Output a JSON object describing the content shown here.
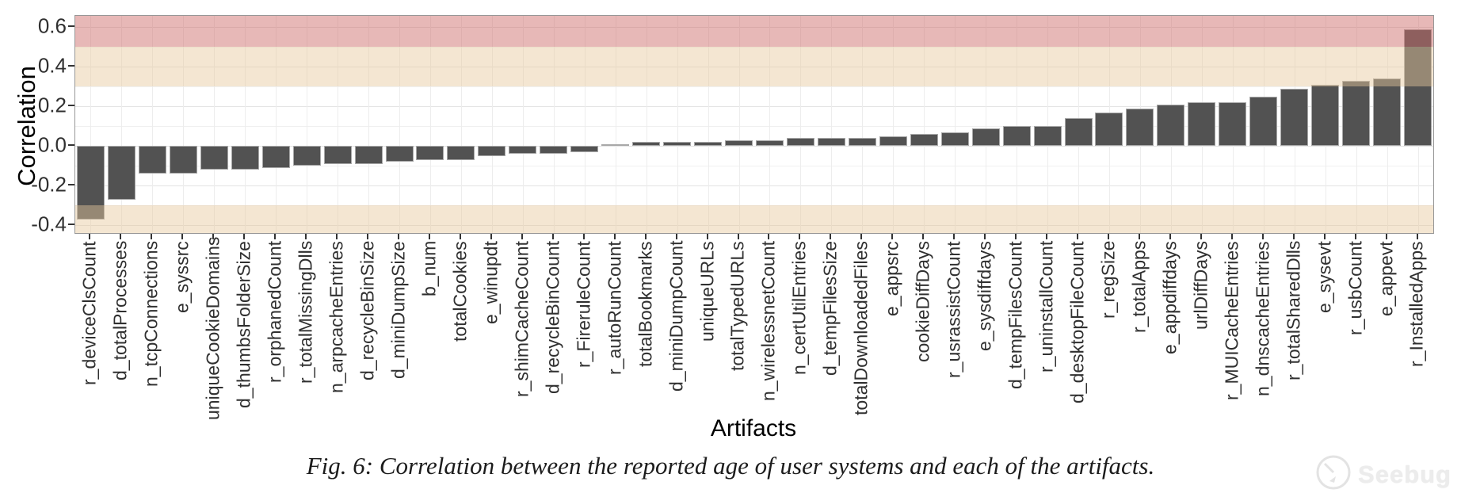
{
  "chart_data": {
    "type": "bar",
    "title": "",
    "xlabel": "Artifacts",
    "ylabel": "Correlation",
    "ylim": [
      -0.44,
      0.656
    ],
    "grid": true,
    "legend": "none",
    "bar_color": "#525252",
    "bar_border_color": "#a8a8a8",
    "ytick_labels": [
      "0.6",
      "0.4",
      "0.2",
      "0.0",
      "-0.2",
      "-0.4"
    ],
    "yticks": [
      0.6,
      0.4,
      0.2,
      0.0,
      -0.2,
      -0.4
    ],
    "yticks_minor": [
      0.5,
      0.3,
      0.1,
      -0.1,
      -0.3
    ],
    "bands": [
      {
        "name": "strong-positive-band",
        "from": 0.5,
        "to": 0.656,
        "color": "rgba(206,110,108,0.49)"
      },
      {
        "name": "moderate-positive-band",
        "from": 0.3,
        "to": 0.5,
        "color": "rgba(231,200,158,0.46)"
      },
      {
        "name": "moderate-negative-band",
        "from": -0.44,
        "to": -0.3,
        "color": "rgba(231,200,158,0.46)"
      }
    ],
    "categories": [
      "r_deviceClsCount",
      "d_totalProcesses",
      "n_tcpConnections",
      "e_syssrc",
      "uniqueCookieDomains",
      "d_thumbsFolderSize",
      "r_orphanedCount",
      "r_totalMissingDlls",
      "n_arpcacheEntries",
      "d_recycleBinSize",
      "d_miniDumpSize",
      "b_num",
      "totalCookies",
      "e_winupdt",
      "r_shimCacheCount",
      "d_recycleBinCount",
      "r_FireruleCount",
      "r_autoRunCount",
      "totalBookmarks",
      "d_miniDumpCount",
      "uniqueURLs",
      "totalTypedURLs",
      "n_wirelessnetCount",
      "n_certUtilEntries",
      "d_tempFilesSize",
      "totalDownloadedFiles",
      "e_appsrc",
      "cookieDiffDays",
      "r_usrassistCount",
      "e_sysdiffdays",
      "d_tempFilesCount",
      "r_uninstallCount",
      "d_desktopFileCount",
      "r_regSize",
      "r_totalApps",
      "e_appdiffdays",
      "urlDiffDays",
      "r_MUICacheEntries",
      "n_dnscacheEntries",
      "r_totalSharedDlls",
      "e_sysevt",
      "r_usbCount",
      "e_appevt",
      "r_InstalledApps"
    ],
    "values": [
      -0.37,
      -0.27,
      -0.14,
      -0.14,
      -0.12,
      -0.12,
      -0.11,
      -0.1,
      -0.09,
      -0.09,
      -0.08,
      -0.07,
      -0.07,
      -0.05,
      -0.04,
      -0.04,
      -0.03,
      0.01,
      0.02,
      0.02,
      0.02,
      0.03,
      0.03,
      0.04,
      0.04,
      0.04,
      0.05,
      0.06,
      0.07,
      0.09,
      0.1,
      0.1,
      0.14,
      0.17,
      0.19,
      0.21,
      0.22,
      0.22,
      0.25,
      0.29,
      0.31,
      0.33,
      0.34,
      0.59
    ]
  },
  "caption": "Fig. 6: Correlation between the reported age of user systems and each of the artifacts.",
  "watermark": {
    "label": "Seebug"
  }
}
